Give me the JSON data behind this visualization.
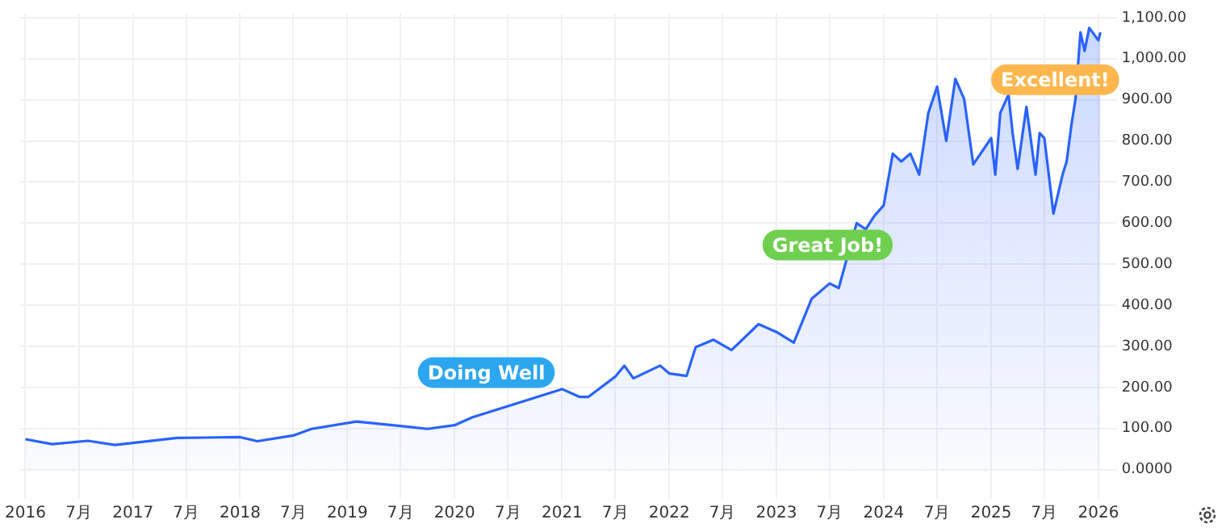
{
  "chart_data": {
    "type": "area",
    "x": [
      "2016-01",
      "2016-04",
      "2016-08",
      "2016-11",
      "2017-06",
      "2018-01",
      "2018-03",
      "2018-07",
      "2018-09",
      "2019-02",
      "2019-07",
      "2019-10",
      "2020-01",
      "2020-03",
      "2021-01",
      "2021-03",
      "2021-04",
      "2021-07",
      "2021-08",
      "2021-09",
      "2021-12",
      "2022-01",
      "2022-03",
      "2022-04",
      "2022-06",
      "2022-08",
      "2022-11",
      "2023-01",
      "2023-03",
      "2023-05",
      "2023-07",
      "2023-08",
      "2023-10",
      "2023-11",
      "2023-12",
      "2024-01",
      "2024-02",
      "2024-03",
      "2024-04",
      "2024-05",
      "2024-06",
      "2024-07",
      "2024-08",
      "2024-09",
      "2024-10",
      "2024-11",
      "2025-01",
      "2025-01-15",
      "2025-02",
      "2025-03",
      "2025-03-15",
      "2025-04",
      "2025-05",
      "2025-06",
      "2025-06-15",
      "2025-07",
      "2025-08",
      "2025-09",
      "2025-09-15",
      "2025-10",
      "2025-10-15",
      "2025-11",
      "2025-11-15",
      "2025-12",
      "2026-01",
      "2026-01-08"
    ],
    "series": [
      {
        "color": "#2962ff",
        "values": [
          74,
          62,
          70,
          60,
          77,
          79,
          69,
          83,
          99,
          117,
          106,
          99,
          108,
          127,
          196,
          177,
          177,
          226,
          253,
          222,
          253,
          234,
          228,
          298,
          316,
          291,
          354,
          335,
          309,
          416,
          453,
          442,
          600,
          585,
          618,
          643,
          769,
          750,
          769,
          718,
          868,
          932,
          800,
          951,
          902,
          743,
          807,
          718,
          868,
          913,
          819,
          732,
          883,
          718,
          819,
          807,
          623,
          718,
          750,
          838,
          902,
          1064,
          1019,
          1075,
          1045,
          1064
        ]
      }
    ],
    "xlim": [
      "2015-12-15",
      "2026-01-20"
    ],
    "xticks": [
      {
        "value": "2016-01-01",
        "label": "2016"
      },
      {
        "value": "2016-07-01",
        "label": "7月"
      },
      {
        "value": "2017-01-01",
        "label": "2017"
      },
      {
        "value": "2017-07-01",
        "label": "7月"
      },
      {
        "value": "2018-01-01",
        "label": "2018"
      },
      {
        "value": "2018-07-01",
        "label": "7月"
      },
      {
        "value": "2019-01-01",
        "label": "2019"
      },
      {
        "value": "2019-07-01",
        "label": "7月"
      },
      {
        "value": "2020-01-01",
        "label": "2020"
      },
      {
        "value": "2020-07-01",
        "label": "7月"
      },
      {
        "value": "2021-01-01",
        "label": "2021"
      },
      {
        "value": "2021-07-01",
        "label": "7月"
      },
      {
        "value": "2022-01-01",
        "label": "2022"
      },
      {
        "value": "2022-07-01",
        "label": "7月"
      },
      {
        "value": "2023-01-01",
        "label": "2023"
      },
      {
        "value": "2023-07-01",
        "label": "7月"
      },
      {
        "value": "2024-01-01",
        "label": "2024"
      },
      {
        "value": "2024-07-01",
        "label": "7月"
      },
      {
        "value": "2025-01-01",
        "label": "2025"
      },
      {
        "value": "2025-07-01",
        "label": "7月"
      },
      {
        "value": "2026-01-01",
        "label": "2026"
      }
    ],
    "ylim": [
      -40,
      1110
    ],
    "yticks": [
      {
        "value": 0,
        "label": "0.0000"
      },
      {
        "value": 100,
        "label": "100.00"
      },
      {
        "value": 200,
        "label": "200.00"
      },
      {
        "value": 300,
        "label": "300.00"
      },
      {
        "value": 400,
        "label": "400.00"
      },
      {
        "value": 500,
        "label": "500.00"
      },
      {
        "value": 600,
        "label": "600.00"
      },
      {
        "value": 700,
        "label": "700.00"
      },
      {
        "value": 800,
        "label": "800.00"
      },
      {
        "value": 900,
        "label": "900.00"
      },
      {
        "value": 1000,
        "label": "1,000.00"
      },
      {
        "value": 1100,
        "label": "1,100.00"
      }
    ],
    "annotations": [
      "Doing Well",
      "Great Job!",
      "Excellent!"
    ],
    "grid": true,
    "legend": false,
    "marker": "none",
    "line_style": "solid"
  }
}
